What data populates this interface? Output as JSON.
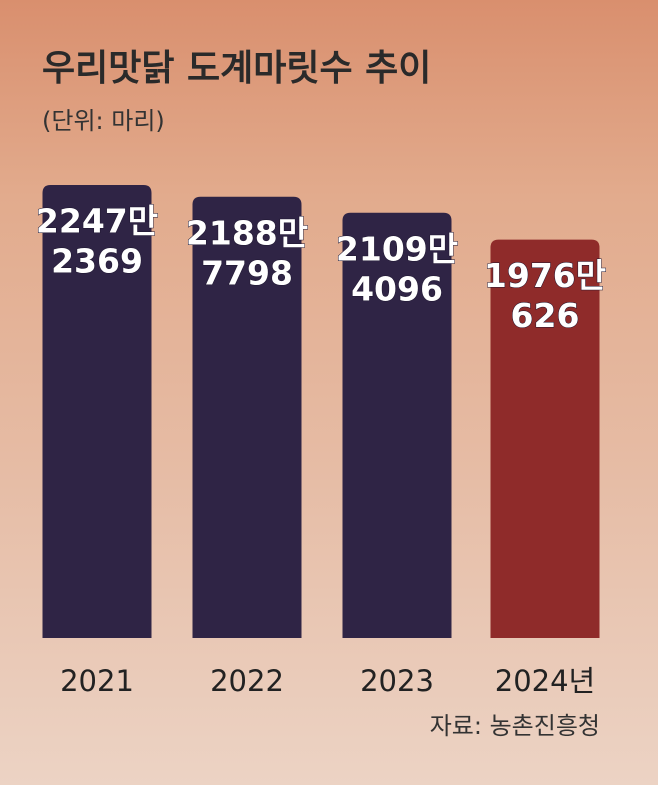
{
  "chart_data": {
    "type": "bar",
    "title": "우리맛닭 도계마릿수 추이",
    "subtitle": "(단위: 마리)",
    "categories": [
      "2021",
      "2022",
      "2023",
      "2024년"
    ],
    "values": [
      22472369,
      21887798,
      21094096,
      19760626
    ],
    "value_labels": [
      [
        "2247만",
        "2369"
      ],
      [
        "2188만",
        "7798"
      ],
      [
        "2109만",
        "4096"
      ],
      [
        "1976만",
        "626"
      ]
    ],
    "colors": [
      "#2f2445",
      "#2f2445",
      "#2f2445",
      "#8f2b2a"
    ],
    "source": "자료: 농촌진흥청"
  }
}
